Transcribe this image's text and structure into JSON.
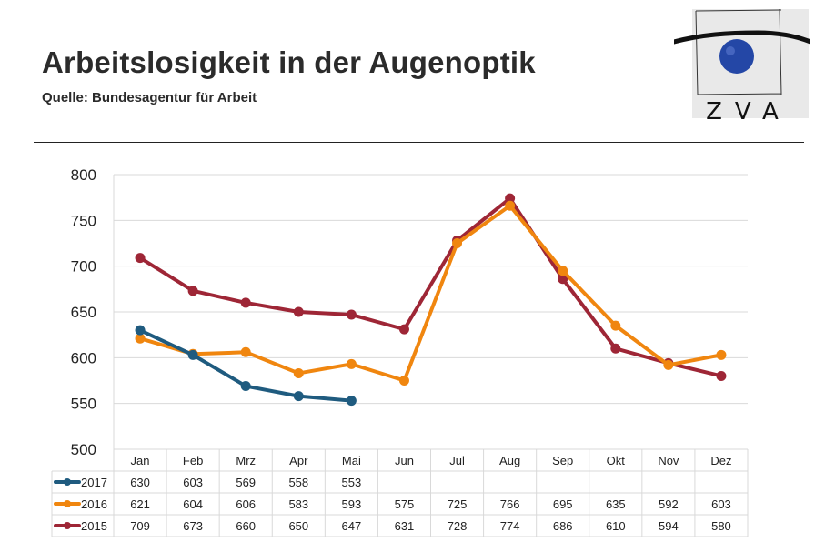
{
  "header": {
    "title": "Arbeitslosigkeit in der Augenoptik",
    "source": "Quelle: Bundesagentur für Arbeit"
  },
  "logo": {
    "text": "ZVA"
  },
  "chart_data": {
    "type": "line",
    "title": "Arbeitslosigkeit in der Augenoptik",
    "xlabel": "",
    "ylabel": "",
    "ylim": [
      500,
      800
    ],
    "yticks": [
      500,
      550,
      600,
      650,
      700,
      750,
      800
    ],
    "grid": true,
    "legend": "data-table",
    "categories": [
      "Jan",
      "Feb",
      "Mrz",
      "Apr",
      "Mai",
      "Jun",
      "Jul",
      "Aug",
      "Sep",
      "Okt",
      "Nov",
      "Dez"
    ],
    "series": [
      {
        "name": "2017",
        "color": "#1f5b7f",
        "values": [
          630,
          603,
          569,
          558,
          553,
          null,
          null,
          null,
          null,
          null,
          null,
          null
        ]
      },
      {
        "name": "2016",
        "color": "#f0860f",
        "values": [
          621,
          604,
          606,
          583,
          593,
          575,
          725,
          766,
          695,
          635,
          592,
          603
        ]
      },
      {
        "name": "2015",
        "color": "#9e2636",
        "values": [
          709,
          673,
          660,
          650,
          647,
          631,
          728,
          774,
          686,
          610,
          594,
          580
        ]
      }
    ]
  }
}
